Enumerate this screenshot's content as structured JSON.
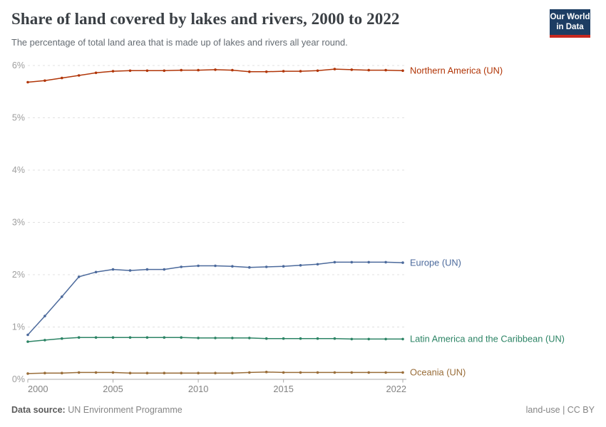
{
  "header": {
    "title": "Share of land covered by lakes and rivers, 2000 to 2022",
    "subtitle": "The percentage of total land area that is made up of lakes and rivers all year round.",
    "logo": {
      "line1": "Our World",
      "line2": "in Data"
    }
  },
  "footer": {
    "datasource_label": "Data source:",
    "datasource_value": "UN Environment Programme",
    "note_right": "land-use | CC BY"
  },
  "chart_data": {
    "type": "line",
    "title": "Share of land covered by lakes and rivers, 2000 to 2022",
    "xlabel": "",
    "ylabel": "",
    "xlim": [
      2000,
      2022
    ],
    "ylim": [
      0,
      6
    ],
    "grid": "horizontal-dashed",
    "legend_position": "right-of-line-ends",
    "yticks": [
      {
        "value": 0,
        "label": "0%"
      },
      {
        "value": 1,
        "label": "1%"
      },
      {
        "value": 2,
        "label": "2%"
      },
      {
        "value": 3,
        "label": "3%"
      },
      {
        "value": 4,
        "label": "4%"
      },
      {
        "value": 5,
        "label": "5%"
      },
      {
        "value": 6,
        "label": "6%"
      }
    ],
    "xticks": [
      {
        "value": 2000,
        "label": "2000"
      },
      {
        "value": 2005,
        "label": "2005"
      },
      {
        "value": 2010,
        "label": "2010"
      },
      {
        "value": 2015,
        "label": "2015"
      },
      {
        "value": 2022,
        "label": "2022"
      }
    ],
    "x": [
      2000,
      2001,
      2002,
      2003,
      2004,
      2005,
      2006,
      2007,
      2008,
      2009,
      2010,
      2011,
      2012,
      2013,
      2014,
      2015,
      2016,
      2017,
      2018,
      2019,
      2020,
      2021,
      2022
    ],
    "series": [
      {
        "name": "Northern America (UN)",
        "color": "#B13507",
        "values": [
          5.68,
          5.71,
          5.76,
          5.81,
          5.86,
          5.89,
          5.9,
          5.9,
          5.9,
          5.91,
          5.91,
          5.92,
          5.91,
          5.88,
          5.88,
          5.89,
          5.89,
          5.9,
          5.93,
          5.92,
          5.91,
          5.91,
          5.9
        ]
      },
      {
        "name": "Europe (UN)",
        "color": "#4C6A9C",
        "values": [
          0.85,
          1.21,
          1.58,
          1.96,
          2.05,
          2.1,
          2.08,
          2.1,
          2.1,
          2.15,
          2.17,
          2.17,
          2.16,
          2.14,
          2.15,
          2.16,
          2.18,
          2.2,
          2.24,
          2.24,
          2.24,
          2.24,
          2.23
        ]
      },
      {
        "name": "Latin America and the Caribbean (UN)",
        "color": "#2C8465",
        "values": [
          0.72,
          0.75,
          0.78,
          0.8,
          0.8,
          0.8,
          0.8,
          0.8,
          0.8,
          0.8,
          0.79,
          0.79,
          0.79,
          0.79,
          0.78,
          0.78,
          0.78,
          0.78,
          0.78,
          0.77,
          0.77,
          0.77,
          0.77
        ]
      },
      {
        "name": "Oceania (UN)",
        "color": "#996D39",
        "values": [
          0.11,
          0.12,
          0.12,
          0.13,
          0.13,
          0.13,
          0.12,
          0.12,
          0.12,
          0.12,
          0.12,
          0.12,
          0.12,
          0.13,
          0.14,
          0.13,
          0.13,
          0.13,
          0.13,
          0.13,
          0.13,
          0.13,
          0.13
        ]
      }
    ]
  }
}
